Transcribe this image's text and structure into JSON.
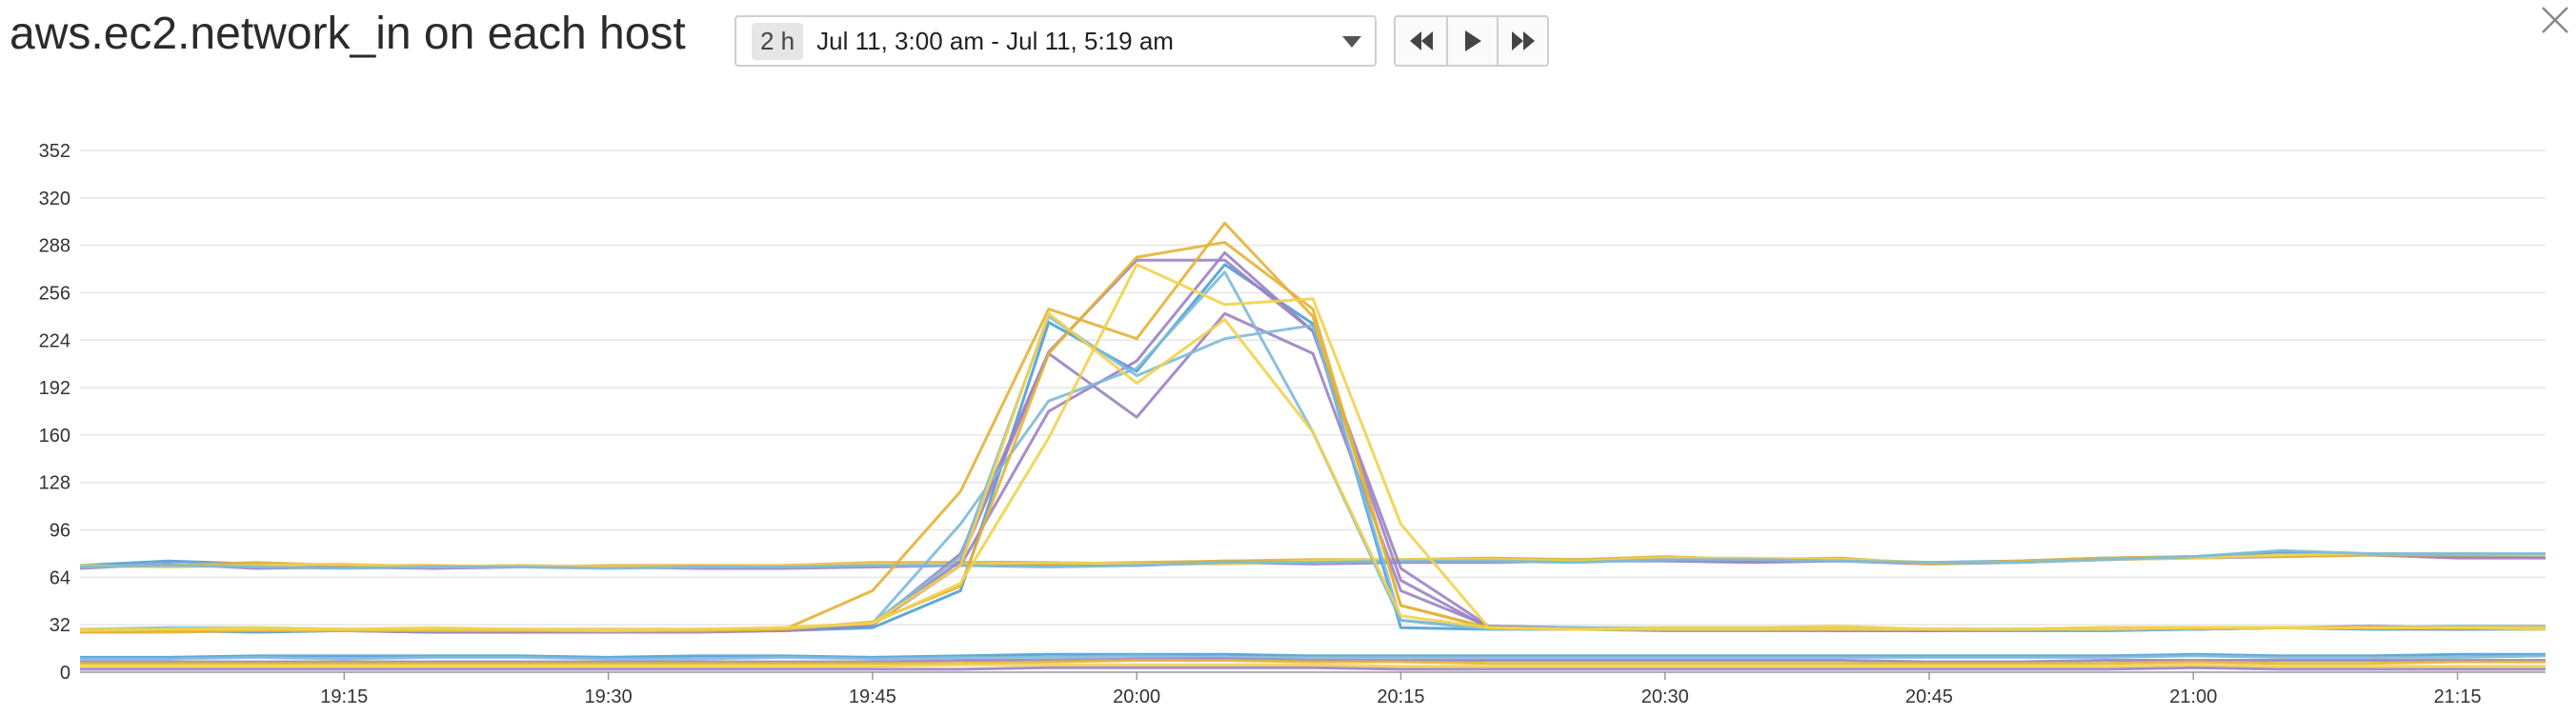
{
  "header": {
    "title": "aws.ec2.network_in on each host",
    "time_badge": "2 h",
    "time_range": "Jul 11, 3:00 am - Jul 11, 5:19 am",
    "buttons": {
      "rewind_icon": "rewind-icon",
      "play_icon": "play-icon",
      "forward_icon": "fast-forward-icon",
      "close_icon": "close-icon"
    }
  },
  "chart_data": {
    "type": "line",
    "title": "aws.ec2.network_in on each host",
    "xlabel": "",
    "ylabel": "",
    "grid": true,
    "legend": "none",
    "ylim": [
      0,
      352
    ],
    "y_ticks": [
      "0",
      "32",
      "64",
      "96",
      "128",
      "160",
      "192",
      "224",
      "256",
      "288",
      "320",
      "352"
    ],
    "x_ticks": [
      "19:15",
      "19:30",
      "19:45",
      "20:00",
      "20:15",
      "20:30",
      "20:45",
      "21:00",
      "21:15"
    ],
    "x_tick_times": [
      19.25,
      19.5,
      19.75,
      20.0,
      20.25,
      20.5,
      20.75,
      21.0,
      21.25
    ],
    "x_range": [
      19.0,
      21.3333
    ],
    "x": [
      19.0,
      19.0833,
      19.1667,
      19.25,
      19.3333,
      19.4167,
      19.5,
      19.5833,
      19.6667,
      19.75,
      19.8333,
      19.9167,
      20.0,
      20.0833,
      20.1667,
      20.25,
      20.3333,
      20.4167,
      20.5,
      20.5833,
      20.6667,
      20.75,
      20.8333,
      20.9167,
      21.0,
      21.0833,
      21.1667,
      21.25,
      21.3333
    ],
    "series": [
      {
        "color": "#4c9fd6",
        "values": [
          72,
          75,
          73,
          72,
          71,
          72,
          71,
          71,
          72,
          73,
          74,
          74,
          73,
          75,
          74,
          75,
          75,
          76,
          76,
          75,
          76,
          74,
          75,
          77,
          78,
          81,
          79,
          78,
          78
        ]
      },
      {
        "color": "#9b82c3",
        "values": [
          70,
          73,
          70,
          71,
          70,
          71,
          71,
          70,
          70,
          71,
          72,
          72,
          72,
          74,
          73,
          74,
          74,
          75,
          75,
          74,
          75,
          73,
          74,
          76,
          77,
          78,
          79,
          77,
          77
        ]
      },
      {
        "color": "#e3b336",
        "values": [
          71,
          72,
          74,
          72,
          72,
          71,
          72,
          72,
          72,
          74,
          74,
          73,
          74,
          75,
          76,
          76,
          77,
          76,
          78,
          76,
          77,
          73,
          75,
          77,
          78,
          78,
          79,
          79,
          79
        ]
      },
      {
        "color": "#f2d24b",
        "values": [
          72,
          71,
          72,
          73,
          71,
          72,
          71,
          71,
          72,
          73,
          73,
          74,
          73,
          73,
          75,
          76,
          76,
          75,
          77,
          77,
          76,
          74,
          74,
          76,
          77,
          79,
          80,
          80,
          79
        ]
      },
      {
        "color": "#7dbad8",
        "values": [
          71,
          72,
          71,
          70,
          71,
          71,
          70,
          71,
          71,
          72,
          72,
          71,
          72,
          74,
          74,
          75,
          75,
          74,
          76,
          76,
          75,
          74,
          74,
          76,
          78,
          82,
          80,
          80,
          80
        ]
      },
      {
        "color": "#4c9fd6",
        "values": [
          27,
          28,
          27,
          28,
          27,
          27,
          28,
          28,
          28,
          30,
          55,
          236,
          203,
          275,
          235,
          30,
          29,
          29,
          28,
          28,
          28,
          28,
          28,
          28,
          29,
          30,
          29,
          29,
          29
        ]
      },
      {
        "color": "#9b82c3",
        "values": [
          27,
          28,
          28,
          28,
          27,
          27,
          27,
          27,
          28,
          32,
          75,
          215,
          172,
          242,
          215,
          55,
          31,
          30,
          29,
          29,
          28,
          28,
          29,
          29,
          29,
          30,
          30,
          30,
          30
        ]
      },
      {
        "color": "#9b82c3",
        "values": [
          28,
          28,
          28,
          29,
          28,
          28,
          28,
          28,
          28,
          32,
          72,
          176,
          210,
          283,
          230,
          62,
          30,
          29,
          29,
          29,
          29,
          28,
          29,
          29,
          29,
          30,
          30,
          29,
          30
        ]
      },
      {
        "color": "#9b82c3",
        "values": [
          28,
          29,
          29,
          28,
          28,
          29,
          28,
          28,
          29,
          32,
          80,
          216,
          278,
          278,
          230,
          70,
          31,
          30,
          29,
          29,
          29,
          28,
          29,
          29,
          29,
          30,
          31,
          30,
          30
        ]
      },
      {
        "color": "#7dbad8",
        "values": [
          29,
          30,
          30,
          29,
          29,
          29,
          29,
          29,
          30,
          33,
          100,
          183,
          205,
          270,
          162,
          35,
          30,
          30,
          30,
          30,
          30,
          29,
          29,
          30,
          30,
          30,
          30,
          31,
          31
        ]
      },
      {
        "color": "#7dbad8",
        "values": [
          28,
          29,
          29,
          29,
          28,
          28,
          28,
          28,
          29,
          33,
          78,
          240,
          200,
          225,
          234,
          35,
          29,
          29,
          29,
          29,
          29,
          29,
          29,
          29,
          29,
          30,
          30,
          30,
          30
        ]
      },
      {
        "color": "#e3b336",
        "values": [
          27,
          27,
          28,
          28,
          28,
          28,
          28,
          28,
          29,
          55,
          122,
          245,
          225,
          303,
          240,
          45,
          30,
          29,
          29,
          29,
          29,
          29,
          29,
          30,
          30,
          30,
          30,
          30,
          30
        ]
      },
      {
        "color": "#e3b336",
        "values": [
          28,
          28,
          29,
          28,
          29,
          28,
          28,
          28,
          29,
          34,
          58,
          215,
          280,
          290,
          245,
          45,
          30,
          29,
          29,
          29,
          29,
          29,
          29,
          30,
          30,
          30,
          30,
          30,
          30
        ]
      },
      {
        "color": "#f2d24b",
        "values": [
          28,
          29,
          30,
          29,
          30,
          29,
          28,
          29,
          30,
          33,
          60,
          158,
          275,
          248,
          252,
          100,
          30,
          29,
          29,
          29,
          29,
          29,
          29,
          29,
          30,
          30,
          30,
          30,
          29
        ]
      },
      {
        "color": "#f2d24b",
        "values": [
          29,
          29,
          29,
          29,
          29,
          29,
          29,
          29,
          30,
          33,
          72,
          242,
          195,
          238,
          162,
          38,
          30,
          29,
          30,
          30,
          31,
          29,
          29,
          30,
          30,
          30,
          30,
          30,
          30
        ]
      },
      {
        "color": "#4c9fd6",
        "values": [
          10,
          10,
          11,
          11,
          11,
          11,
          10,
          11,
          11,
          10,
          11,
          12,
          12,
          12,
          11,
          11,
          11,
          11,
          11,
          11,
          11,
          11,
          11,
          11,
          12,
          11,
          11,
          12,
          12
        ]
      },
      {
        "color": "#7dbad8",
        "values": [
          9,
          9,
          10,
          9,
          10,
          10,
          9,
          9,
          10,
          9,
          10,
          10,
          11,
          10,
          10,
          10,
          10,
          10,
          10,
          10,
          10,
          10,
          10,
          10,
          11,
          10,
          10,
          10,
          11
        ]
      },
      {
        "color": "#9b82c3",
        "values": [
          7,
          7,
          7,
          7,
          7,
          7,
          7,
          7,
          7,
          7,
          8,
          8,
          9,
          9,
          8,
          8,
          8,
          8,
          8,
          8,
          8,
          7,
          7,
          8,
          8,
          8,
          8,
          8,
          8
        ]
      },
      {
        "color": "#e3b336",
        "values": [
          6,
          6,
          6,
          6,
          6,
          6,
          6,
          6,
          6,
          6,
          6,
          7,
          8,
          8,
          7,
          7,
          6,
          6,
          6,
          6,
          6,
          6,
          6,
          6,
          7,
          6,
          6,
          7,
          7
        ]
      },
      {
        "color": "#f2d24b",
        "values": [
          4,
          4,
          4,
          4,
          4,
          4,
          4,
          4,
          4,
          4,
          5,
          5,
          5,
          5,
          5,
          4,
          4,
          4,
          4,
          4,
          4,
          4,
          4,
          4,
          5,
          4,
          4,
          4,
          4
        ]
      },
      {
        "color": "#9b82c3",
        "values": [
          2,
          2,
          2,
          2,
          2,
          2,
          2,
          2,
          2,
          2,
          2,
          3,
          3,
          3,
          3,
          2,
          2,
          2,
          2,
          2,
          2,
          2,
          2,
          2,
          3,
          2,
          2,
          2,
          2
        ]
      }
    ]
  }
}
